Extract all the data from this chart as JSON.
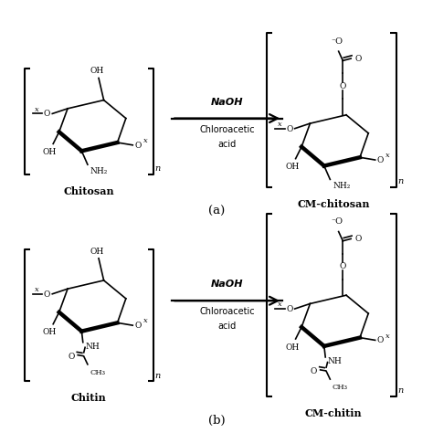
{
  "background_color": "#ffffff",
  "fig_width": 4.74,
  "fig_height": 4.74,
  "title_a": "(a)",
  "title_b": "(b)",
  "label_chitosan": "Chitosan",
  "label_cm_chitosan": "CM-chitosan",
  "label_chitin": "Chitin",
  "label_cm_chitin": "CM-chitin",
  "reagent_line1": "NaOH",
  "reagent_line2": "Chloroacetic",
  "reagent_line3": "acid",
  "line_color": "#000000",
  "text_color": "#000000",
  "lw_thin": 1.2,
  "lw_thick": 3.2,
  "lw_bracket": 1.5
}
